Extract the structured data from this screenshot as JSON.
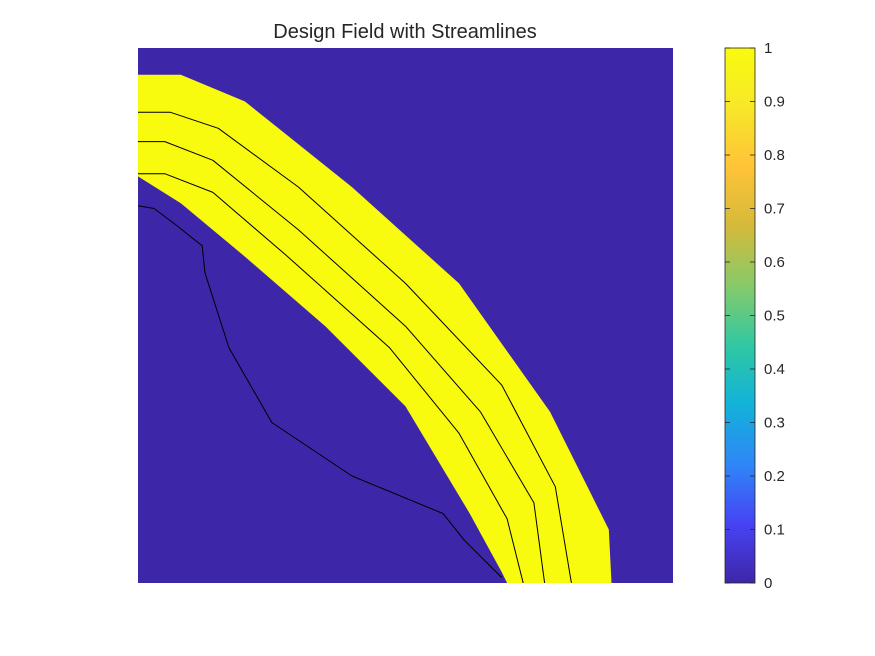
{
  "chart_data": {
    "type": "heatmap",
    "title": "Design Field with Streamlines",
    "xlabel": "",
    "ylabel": "",
    "axes_visible": false,
    "x_range": [
      0,
      1
    ],
    "y_range": [
      0,
      1
    ],
    "colormap": "parula",
    "colorbar": {
      "limits": [
        0,
        1
      ],
      "ticks": [
        0,
        0.1,
        0.2,
        0.3,
        0.4,
        0.5,
        0.6,
        0.7,
        0.8,
        0.9,
        1
      ],
      "tick_labels": [
        "0",
        "0.1",
        "0.2",
        "0.3",
        "0.4",
        "0.5",
        "0.6",
        "0.7",
        "0.8",
        "0.9",
        "1"
      ],
      "colors": [
        "#3E26A8",
        "#4743F5",
        "#2E87F7",
        "#12B2D9",
        "#30C8A2",
        "#87CA6A",
        "#D5BA3A",
        "#FFC338",
        "#F7E728",
        "#F9FB0E"
      ],
      "placement": "right"
    },
    "field": {
      "background_value": 0,
      "channel_value": 1,
      "background_color": "#3E26A8",
      "channel_color": "#F9FB0E",
      "channel_upper_edge": [
        [
          0,
          0.95
        ],
        [
          0.08,
          0.95
        ],
        [
          0.2,
          0.9
        ],
        [
          0.4,
          0.74
        ],
        [
          0.6,
          0.56
        ],
        [
          0.77,
          0.32
        ],
        [
          0.88,
          0.1
        ],
        [
          0.885,
          0
        ]
      ],
      "channel_lower_edge": [
        [
          0,
          0.76
        ],
        [
          0.08,
          0.71
        ],
        [
          0.2,
          0.61
        ],
        [
          0.35,
          0.48
        ],
        [
          0.5,
          0.33
        ],
        [
          0.62,
          0.13
        ],
        [
          0.68,
          0.02
        ],
        [
          0.69,
          0
        ]
      ]
    },
    "streamlines": [
      {
        "points": [
          [
            0,
            0.88
          ],
          [
            0.06,
            0.88
          ],
          [
            0.15,
            0.85
          ],
          [
            0.3,
            0.74
          ],
          [
            0.5,
            0.56
          ],
          [
            0.68,
            0.37
          ],
          [
            0.78,
            0.18
          ],
          [
            0.81,
            0
          ]
        ]
      },
      {
        "points": [
          [
            0,
            0.825
          ],
          [
            0.05,
            0.825
          ],
          [
            0.14,
            0.79
          ],
          [
            0.3,
            0.66
          ],
          [
            0.5,
            0.48
          ],
          [
            0.64,
            0.32
          ],
          [
            0.74,
            0.15
          ],
          [
            0.76,
            0
          ]
        ]
      },
      {
        "points": [
          [
            0,
            0.765
          ],
          [
            0.05,
            0.765
          ],
          [
            0.14,
            0.73
          ],
          [
            0.28,
            0.61
          ],
          [
            0.47,
            0.44
          ],
          [
            0.6,
            0.28
          ],
          [
            0.69,
            0.12
          ],
          [
            0.72,
            0
          ]
        ]
      },
      {
        "points": [
          [
            0,
            0.705
          ],
          [
            0.03,
            0.7
          ],
          [
            0.07,
            0.67
          ],
          [
            0.12,
            0.63
          ],
          [
            0.125,
            0.58
          ],
          [
            0.17,
            0.44
          ],
          [
            0.25,
            0.3
          ],
          [
            0.4,
            0.2
          ],
          [
            0.57,
            0.13
          ],
          [
            0.61,
            0.08
          ],
          [
            0.68,
            0.01
          ]
        ]
      }
    ]
  }
}
